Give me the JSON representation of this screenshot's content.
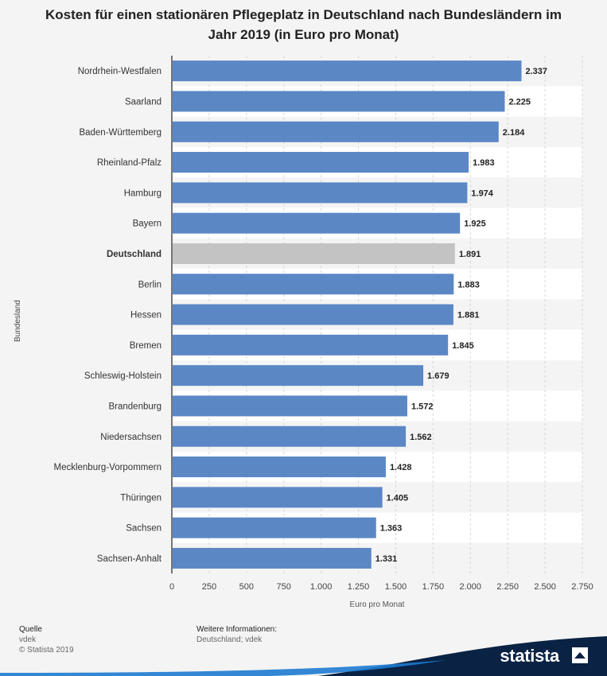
{
  "title": "Kosten für einen stationären Pflegeplatz in Deutschland nach Bundesländern im Jahr 2019 (in Euro pro Monat)",
  "chart_data": {
    "type": "bar",
    "orientation": "horizontal",
    "categories": [
      "Nordrhein-Westfalen",
      "Saarland",
      "Baden-Württemberg",
      "Rheinland-Pfalz",
      "Hamburg",
      "Bayern",
      "Deutschland",
      "Berlin",
      "Hessen",
      "Bremen",
      "Schleswig-Holstein",
      "Brandenburg",
      "Niedersachsen",
      "Mecklenburg-Vorpommern",
      "Thüringen",
      "Sachsen",
      "Sachsen-Anhalt"
    ],
    "values": [
      2337,
      2225,
      2184,
      1983,
      1974,
      1925,
      1891,
      1883,
      1881,
      1845,
      1679,
      1572,
      1562,
      1428,
      1405,
      1363,
      1331
    ],
    "value_labels": [
      "2.337",
      "2.225",
      "2.184",
      "1.983",
      "1.974",
      "1.925",
      "1.891",
      "1.883",
      "1.881",
      "1.845",
      "1.679",
      "1.572",
      "1.562",
      "1.428",
      "1.405",
      "1.363",
      "1.331"
    ],
    "highlight_category": "Deutschland",
    "xlabel": "Euro pro Monat",
    "ylabel": "Bundesland",
    "xlim": [
      0,
      2750
    ],
    "xticks": [
      0,
      250,
      500,
      750,
      1000,
      1250,
      1500,
      1750,
      2000,
      2250,
      2500,
      2750
    ],
    "xtick_labels": [
      "0",
      "250",
      "500",
      "750",
      "1.000",
      "1.250",
      "1.500",
      "1.750",
      "2.000",
      "2.250",
      "2.500",
      "2.750"
    ],
    "grid": true,
    "colors": {
      "bar": "#5b87c5",
      "highlight": "#c3c3c3"
    }
  },
  "footer": {
    "source_heading": "Quelle",
    "source": "vdek",
    "copyright": "© Statista 2019",
    "info_heading": "Weitere Informationen:",
    "info": "Deutschland; vdek"
  },
  "brand": {
    "name": "statista",
    "colors": {
      "band": "#0a2244",
      "accent": "#1e7bd0"
    }
  }
}
